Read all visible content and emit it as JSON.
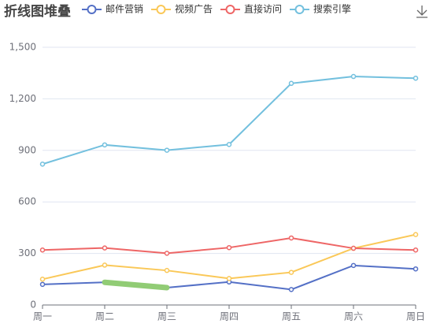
{
  "chart_data": {
    "type": "line",
    "title": "折线图堆叠",
    "categories": [
      "周一",
      "周二",
      "周三",
      "周四",
      "周五",
      "周六",
      "周日"
    ],
    "series": [
      {
        "name": "邮件营销",
        "color": "#5470c6",
        "values": [
          120,
          132,
          101,
          134,
          90,
          230,
          210
        ]
      },
      {
        "name": "视频广告",
        "color": "#fac858",
        "values": [
          150,
          232,
          201,
          154,
          190,
          330,
          410
        ]
      },
      {
        "name": "直接访问",
        "color": "#ee6666",
        "values": [
          320,
          332,
          301,
          334,
          390,
          330,
          320
        ]
      },
      {
        "name": "搜索引擎",
        "color": "#73c0de",
        "values": [
          820,
          932,
          901,
          934,
          1290,
          1330,
          1320
        ]
      }
    ],
    "ylim": [
      0,
      1500
    ],
    "yticks": [
      0,
      300,
      600,
      900,
      {
        "value": 1200,
        "label": "1,200"
      },
      {
        "value": 1500,
        "label": "1,500"
      }
    ],
    "grid": true,
    "highlight": {
      "series": 0,
      "from": 1,
      "to": 2,
      "color": "#91cc75"
    }
  }
}
